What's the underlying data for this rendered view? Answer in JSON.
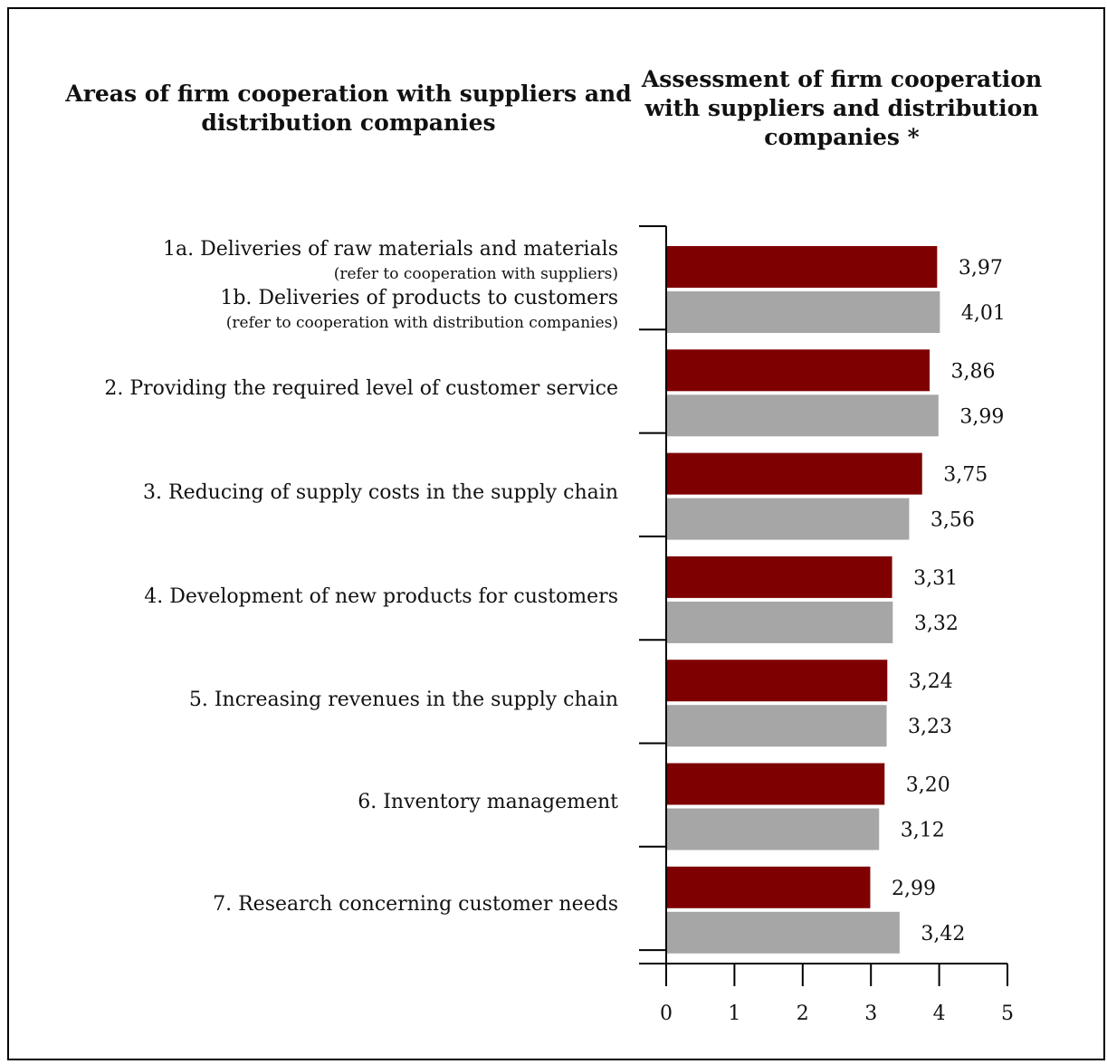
{
  "titles": {
    "left": "Areas of firm cooperation with suppliers and distribution companies",
    "right": "Assessment of firm cooperation with suppliers and distribution companies *"
  },
  "categories": [
    {
      "lines": [
        {
          "text": "1a. Deliveries of raw materials and materials",
          "style": "main"
        },
        {
          "text": "(refer to cooperation with suppliers)",
          "style": "note"
        },
        {
          "text": "1b. Deliveries of products to customers",
          "style": "main"
        },
        {
          "text": "(refer to cooperation with distribution companies)",
          "style": "note"
        }
      ]
    },
    {
      "lines": [
        {
          "text": "2. Providing the required level of customer service",
          "style": "main"
        }
      ]
    },
    {
      "lines": [
        {
          "text": "3. Reducing of supply costs in the supply chain",
          "style": "main"
        }
      ]
    },
    {
      "lines": [
        {
          "text": "4. Development of new products for customers",
          "style": "main"
        }
      ]
    },
    {
      "lines": [
        {
          "text": "5. Increasing revenues in the supply chain",
          "style": "main"
        }
      ]
    },
    {
      "lines": [
        {
          "text": "6. Inventory management",
          "style": "main"
        }
      ]
    },
    {
      "lines": [
        {
          "text": "7. Research concerning customer needs",
          "style": "main"
        }
      ]
    }
  ],
  "chart_data": {
    "type": "bar",
    "orientation": "horizontal",
    "categories": [
      "1a. Deliveries of raw materials and materials (refer to cooperation with suppliers) / 1b. Deliveries of products to customers (refer to cooperation with distribution companies)",
      "2. Providing the required level of customer service",
      "3. Reducing of supply costs in the supply chain",
      "4. Development of new products for customers",
      "5. Increasing revenues in the supply chain",
      "6. Inventory management",
      "7. Research concerning customer needs"
    ],
    "series": [
      {
        "color": "#7f0000",
        "values": [
          3.97,
          3.86,
          3.75,
          3.31,
          3.24,
          3.2,
          2.99
        ],
        "labels": [
          "3,97",
          "3,86",
          "3,75",
          "3,31",
          "3,24",
          "3,20",
          "2,99"
        ]
      },
      {
        "color": "#a6a6a6",
        "values": [
          4.01,
          3.99,
          3.56,
          3.32,
          3.23,
          3.12,
          3.42
        ],
        "labels": [
          "4,01",
          "3,99",
          "3,56",
          "3,32",
          "3,23",
          "3,12",
          "3,42"
        ]
      }
    ],
    "xlim": [
      0,
      5
    ],
    "xticks": [
      "0",
      "1",
      "2",
      "3",
      "4",
      "5"
    ],
    "grid": false,
    "legend": "none"
  }
}
